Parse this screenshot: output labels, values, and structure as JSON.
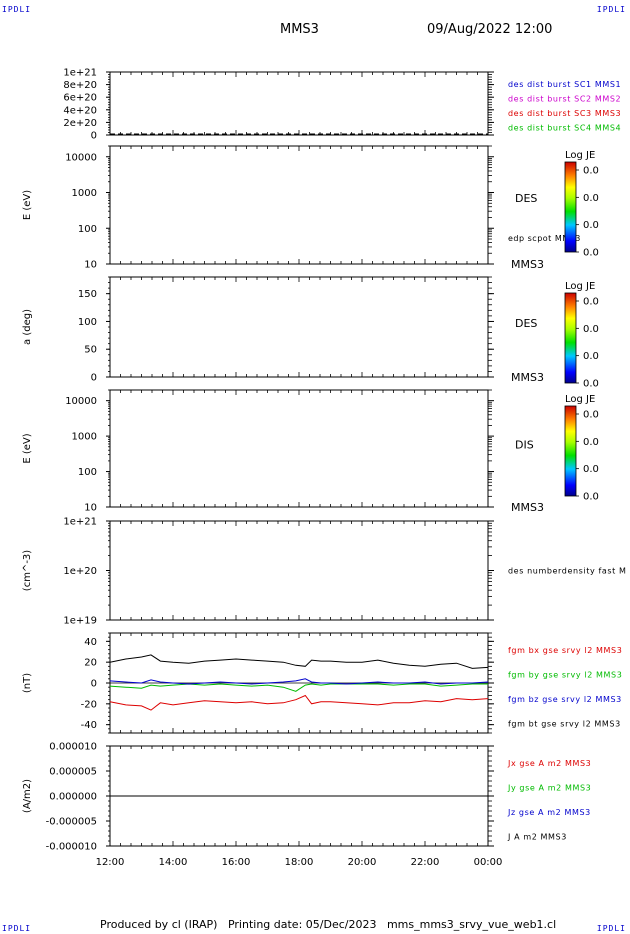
{
  "corners": {
    "tl": "IPDLI",
    "tr": "IPDLI",
    "bl": "IPDLI",
    "br": "IPDLI"
  },
  "header": {
    "spacecraft": "MMS3",
    "datetime": "09/Aug/2022 12:00"
  },
  "footer": {
    "text": "Produced by cl (IRAP)   Printing date: 05/Dec/2023   mms_mms3_srvy_vue_web1.cl"
  },
  "colors": {
    "blue": "#0000cc",
    "magenta": "#cc00cc",
    "red": "#dd0000",
    "green": "#00bb00",
    "black": "#000000"
  },
  "chart_data": [
    {
      "id": "panel1",
      "type": "line",
      "ylabel": "",
      "ylim": [
        0,
        1e+21
      ],
      "yticks": [
        "0",
        "2e+20",
        "4e+20",
        "6e+20",
        "8e+20",
        "1e+21"
      ],
      "legend": [
        {
          "label": "des dist burst SC1 MMS1",
          "color": "#0000cc"
        },
        {
          "label": "des dist burst SC2 MMS2",
          "color": "#cc00cc"
        },
        {
          "label": "des dist burst SC3 MMS3",
          "color": "#dd0000"
        },
        {
          "label": "des dist burst SC4 MMS4",
          "color": "#00bb00"
        }
      ],
      "series": [
        {
          "style": "dashed",
          "color": "#000000",
          "values": [
            0,
            0
          ]
        }
      ]
    },
    {
      "id": "panel2",
      "type": "heatmap",
      "scale": "log",
      "ylabel": "E (eV)",
      "ylim": [
        10,
        20000
      ],
      "yticks": [
        "10",
        "100",
        "1000",
        "10000"
      ],
      "right_label": "DES",
      "extra_label": "edp scpot MMS3",
      "mms_label": "MMS3",
      "colorbar": {
        "title": "Log JE",
        "ticks": [
          "0.0",
          "0.0",
          "0.0",
          "0.0"
        ]
      }
    },
    {
      "id": "panel3",
      "type": "heatmap",
      "ylabel": "a (deg)",
      "ylim": [
        0,
        180
      ],
      "yticks": [
        "0",
        "50",
        "100",
        "150"
      ],
      "right_label": "DES",
      "mms_label": "MMS3",
      "colorbar": {
        "title": "Log JE",
        "ticks": [
          "0.0",
          "0.0",
          "0.0",
          "0.0"
        ]
      }
    },
    {
      "id": "panel4",
      "type": "heatmap",
      "scale": "log",
      "ylabel": "E (eV)",
      "ylim": [
        10,
        20000
      ],
      "yticks": [
        "10",
        "100",
        "1000",
        "10000"
      ],
      "right_label": "DIS",
      "mms_label": "MMS3",
      "colorbar": {
        "title": "Log JE",
        "ticks": [
          "0.0",
          "0.0",
          "0.0",
          "0.0"
        ]
      }
    },
    {
      "id": "panel5",
      "type": "line",
      "scale": "log",
      "ylabel": "(cm^-3)",
      "ylim": [
        1e+19,
        1e+21
      ],
      "yticks": [
        "1e+19",
        "1e+20",
        "1e+21"
      ],
      "legend": [
        {
          "label": "des numberdensity fast M",
          "color": "#000000"
        }
      ]
    },
    {
      "id": "panel6",
      "type": "line",
      "ylabel": "(nT)",
      "ylim": [
        -48,
        48
      ],
      "yticks": [
        "-40",
        "-20",
        "0",
        "20",
        "40"
      ],
      "legend": [
        {
          "label": "fgm bx gse srvy l2 MMS3",
          "color": "#dd0000"
        },
        {
          "label": "fgm by gse srvy l2 MMS3",
          "color": "#00bb00"
        },
        {
          "label": "fgm bz gse srvy l2 MMS3",
          "color": "#0000cc"
        },
        {
          "label": "fgm bt gse srvy l2 MMS3",
          "color": "#000000"
        }
      ],
      "x": [
        12.0,
        12.5,
        13.0,
        13.3,
        13.6,
        14.0,
        14.5,
        15.0,
        15.5,
        16.0,
        16.5,
        17.0,
        17.5,
        17.9,
        18.2,
        18.4,
        18.7,
        19.0,
        19.5,
        20.0,
        20.5,
        21.0,
        21.5,
        22.0,
        22.5,
        23.0,
        23.5,
        24.0
      ],
      "series": [
        {
          "name": "fgm bx gse srvy l2 MMS3",
          "color": "#dd0000",
          "values": [
            -18,
            -21,
            -22,
            -26,
            -19,
            -21,
            -19,
            -17,
            -18,
            -19,
            -18,
            -20,
            -19,
            -16,
            -12,
            -20,
            -18,
            -18,
            -19,
            -20,
            -21,
            -19,
            -19,
            -17,
            -18,
            -15,
            -16,
            -15
          ]
        },
        {
          "name": "fgm by gse srvy l2 MMS3",
          "color": "#00bb00",
          "values": [
            -3,
            -4,
            -5,
            -2,
            -3,
            -2,
            -1,
            -2,
            -1,
            -2,
            -3,
            -2,
            -4,
            -8,
            -2,
            -1,
            -2,
            -1,
            -1,
            -1,
            -1,
            -2,
            -1,
            -1,
            -3,
            -2,
            -1,
            -1
          ]
        },
        {
          "name": "fgm bz gse srvy l2 MMS3",
          "color": "#0000cc",
          "values": [
            2,
            1,
            0,
            3,
            1,
            0,
            -1,
            0,
            1,
            0,
            -1,
            0,
            1,
            2,
            4,
            1,
            0,
            0,
            -1,
            0,
            1,
            0,
            0,
            1,
            -1,
            0,
            0,
            1
          ]
        },
        {
          "name": "fgm bt gse srvy l2 MMS3",
          "color": "#000000",
          "values": [
            20,
            23,
            25,
            27,
            21,
            20,
            19,
            21,
            22,
            23,
            22,
            21,
            20,
            17,
            16,
            22,
            21,
            21,
            20,
            20,
            22,
            19,
            17,
            16,
            18,
            19,
            14,
            15
          ]
        }
      ]
    },
    {
      "id": "panel7",
      "type": "line",
      "ylabel": "(A/m2)",
      "ylim": [
        -1e-05,
        1e-05
      ],
      "yticks": [
        "-0.000010",
        "-0.000005",
        "0.000000",
        "0.000005",
        "0.000010"
      ],
      "legend": [
        {
          "label": "Jx gse A m2 MMS3",
          "color": "#dd0000"
        },
        {
          "label": "Jy gse A m2 MMS3",
          "color": "#00bb00"
        },
        {
          "label": "Jz gse A m2 MMS3",
          "color": "#0000cc"
        },
        {
          "label": "J A m2 MMS3",
          "color": "#000000"
        }
      ],
      "series": [
        {
          "color": "#000000",
          "values": [
            0,
            0
          ]
        }
      ]
    }
  ],
  "xaxis": {
    "ticks": [
      "12:00",
      "14:00",
      "16:00",
      "18:00",
      "20:00",
      "22:00",
      "00:00"
    ],
    "range_hours": [
      12,
      24
    ]
  }
}
